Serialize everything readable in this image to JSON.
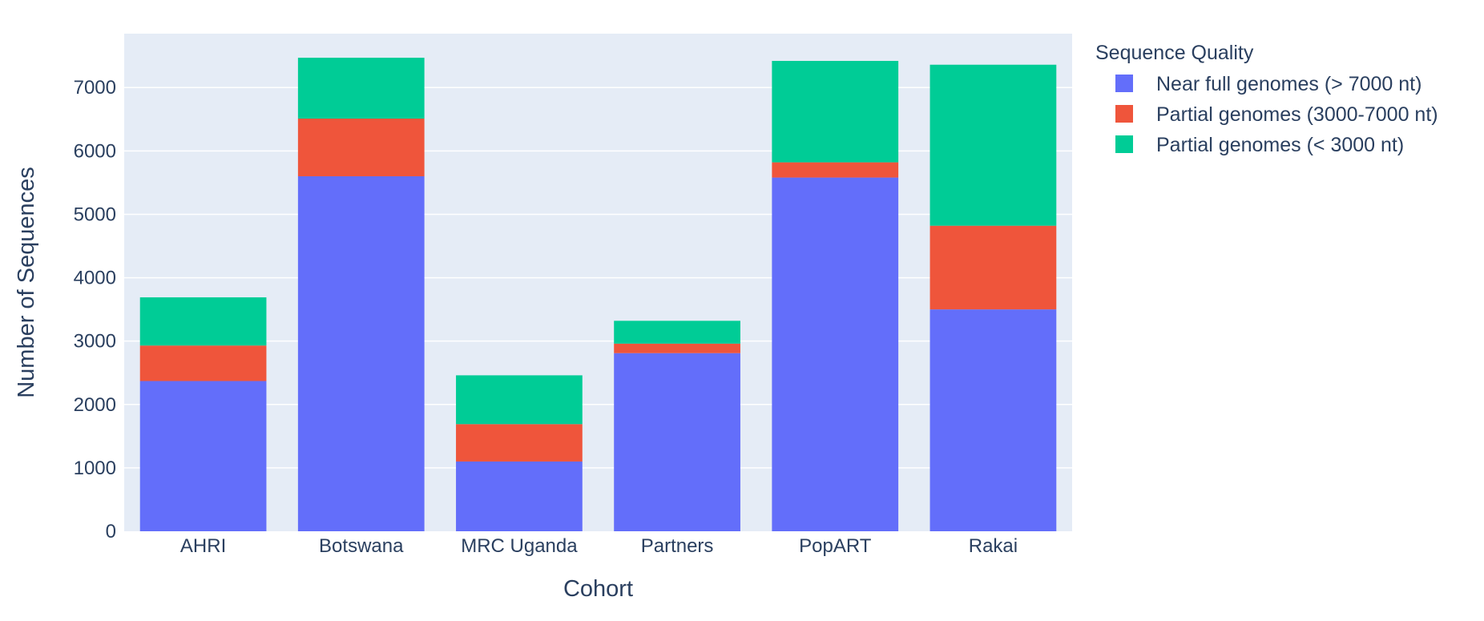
{
  "chart_data": {
    "type": "bar",
    "barmode": "stack",
    "title": "",
    "xlabel": "Cohort",
    "ylabel": "Number of Sequences",
    "categories": [
      "AHRI",
      "Botswana",
      "MRC Uganda",
      "Partners",
      "PopART",
      "Rakai"
    ],
    "ylim": [
      0,
      7850
    ],
    "yticks": [
      0,
      1000,
      2000,
      3000,
      4000,
      5000,
      6000,
      7000
    ],
    "grid": true,
    "legend_title": "Sequence Quality",
    "legend_position": "top-right",
    "series": [
      {
        "name": "Near full genomes (> 7000 nt)",
        "color": "#636efa",
        "values": [
          2370,
          5600,
          1100,
          2810,
          5580,
          3500
        ]
      },
      {
        "name": "Partial genomes (3000-7000 nt)",
        "color": "#ef553b",
        "values": [
          560,
          910,
          590,
          150,
          240,
          1320
        ]
      },
      {
        "name": "Partial genomes (< 3000 nt)",
        "color": "#00cc96",
        "values": [
          760,
          960,
          770,
          360,
          1600,
          2540
        ]
      }
    ],
    "plot_background": "#e5ecf6",
    "grid_color": "#ffffff",
    "text_color": "#2a3f5f"
  }
}
